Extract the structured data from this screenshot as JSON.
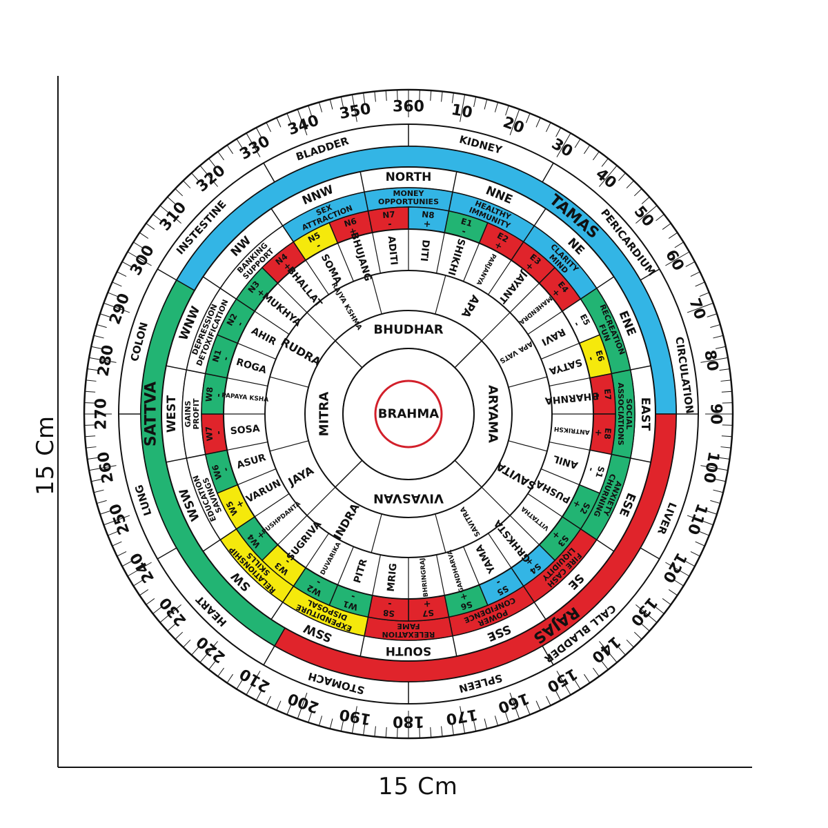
{
  "dimensions": {
    "width_label": "15 Cm",
    "height_label": "15 Cm"
  },
  "degree_labels": [
    "360",
    "10",
    "20",
    "30",
    "40",
    "50",
    "60",
    "70",
    "80",
    "90",
    "100",
    "110",
    "120",
    "130",
    "140",
    "150",
    "160",
    "170",
    "180",
    "190",
    "200",
    "210",
    "220",
    "230",
    "240",
    "250",
    "260",
    "270",
    "280",
    "290",
    "300",
    "310",
    "320",
    "330",
    "340",
    "350"
  ],
  "organ_labels": [
    {
      "text": "KIDNEY",
      "deg": 15
    },
    {
      "text": "PERICARDIUM",
      "deg": 52
    },
    {
      "text": "CIRCULATION",
      "deg": 82
    },
    {
      "text": "LIVER",
      "deg": 112
    },
    {
      "text": "CALL BLADDER",
      "deg": 142
    },
    {
      "text": "SPLEEN",
      "deg": 165
    },
    {
      "text": "STOMACH",
      "deg": 195
    },
    {
      "text": "HEART",
      "deg": 225
    },
    {
      "text": "LUNG",
      "deg": 252
    },
    {
      "text": "COLON",
      "deg": 285
    },
    {
      "text": "INSTESTINE",
      "deg": 312
    },
    {
      "text": "BLADDER",
      "deg": 342
    }
  ],
  "guna_labels": [
    {
      "text": "TAMAS",
      "deg": 40,
      "color": "#0a2f66"
    },
    {
      "text": "RAJAS",
      "deg": 145,
      "color": "#111111"
    },
    {
      "text": "SATTVA",
      "deg": 270,
      "color": "#111111"
    }
  ],
  "guna_arcs": [
    {
      "name": "tamas",
      "from": -60,
      "to": 90,
      "color": "#33b5e5"
    },
    {
      "name": "rajas",
      "from": 90,
      "to": 210,
      "color": "#e0242b"
    },
    {
      "name": "sattva",
      "from": 210,
      "to": 300,
      "color": "#22b473"
    }
  ],
  "directions": [
    {
      "text": "NORTH",
      "deg": 0
    },
    {
      "text": "NNE",
      "deg": 22.5
    },
    {
      "text": "NE",
      "deg": 45
    },
    {
      "text": "ENE",
      "deg": 67.5
    },
    {
      "text": "EAST",
      "deg": 90
    },
    {
      "text": "ESE",
      "deg": 112.5
    },
    {
      "text": "SE",
      "deg": 135
    },
    {
      "text": "SSE",
      "deg": 157.5
    },
    {
      "text": "SOUTH",
      "deg": 180
    },
    {
      "text": "SSW",
      "deg": 202.5
    },
    {
      "text": "SW",
      "deg": 225
    },
    {
      "text": "WSW",
      "deg": 247.5
    },
    {
      "text": "WEST",
      "deg": 270
    },
    {
      "text": "WNW",
      "deg": 292.5
    },
    {
      "text": "NW",
      "deg": 315
    },
    {
      "text": "NNW",
      "deg": 337.5
    }
  ],
  "zone_labels": [
    {
      "lines": [
        "MONEY",
        "OPPORTUNIES"
      ],
      "deg": 0,
      "color": "#33b5e5"
    },
    {
      "lines": [
        "HEALTHY",
        "IMMUNITY"
      ],
      "deg": 22.5,
      "color": "#33b5e5"
    },
    {
      "lines": [
        "CLARITY",
        "MIND"
      ],
      "deg": 45,
      "color": "#33b5e5"
    },
    {
      "lines": [
        "RECREATION",
        "FUN"
      ],
      "deg": 67.5,
      "color": "#22b473"
    },
    {
      "lines": [
        "SOCIAL",
        "ASSOCIATIONS"
      ],
      "deg": 90,
      "color": "#22b473"
    },
    {
      "lines": [
        "ANXIETY",
        "CHURNING"
      ],
      "deg": 112.5,
      "color": "#22b473"
    },
    {
      "lines": [
        "FIRE CASH",
        "LIQUIDITY"
      ],
      "deg": 135,
      "color": "#e0242b"
    },
    {
      "lines": [
        "POWER",
        "CONFIDENCE"
      ],
      "deg": 157.5,
      "color": "#e0242b"
    },
    {
      "lines": [
        "RELEXATION",
        "FAME"
      ],
      "deg": 180,
      "color": "#e0242b"
    },
    {
      "lines": [
        "EXPENDITURE",
        "DISPOSAL"
      ],
      "deg": 202.5,
      "color": "#f5e90c"
    },
    {
      "lines": [
        "RELATIONSHIP",
        "SKILLS"
      ],
      "deg": 225,
      "color": "#f5e90c"
    },
    {
      "lines": [
        "EDUCATION",
        "SAVINGS"
      ],
      "deg": 247.5,
      "color": "#ffffff"
    },
    {
      "lines": [
        "GAINS",
        "PROFIT"
      ],
      "deg": 270,
      "color": "#ffffff"
    },
    {
      "lines": [
        "DEPRESSION",
        "DETOXIFICATION"
      ],
      "deg": 292.5,
      "color": "#ffffff"
    },
    {
      "lines": [
        "BANKING",
        "SUPPORT"
      ],
      "deg": 315,
      "color": "#ffffff"
    },
    {
      "lines": [
        "SEX",
        "ATTRACTION"
      ],
      "deg": 337.5,
      "color": "#33b5e5"
    }
  ],
  "padas": [
    {
      "code": "N4",
      "sign": "+",
      "color": "#e0242b"
    },
    {
      "code": "N5",
      "sign": "-",
      "color": "#f5e90c"
    },
    {
      "code": "N6",
      "sign": "+",
      "color": "#e0242b"
    },
    {
      "code": "N7",
      "sign": "-",
      "color": "#e0242b"
    },
    {
      "code": "N8",
      "sign": "+",
      "color": "#33b5e5"
    },
    {
      "code": "E1",
      "sign": "-",
      "color": "#22b473"
    },
    {
      "code": "E2",
      "sign": "+",
      "color": "#e0242b"
    },
    {
      "code": "E3",
      "sign": "+",
      "color": "#e0242b"
    },
    {
      "code": "E4",
      "sign": "+",
      "color": "#e0242b"
    },
    {
      "code": "E5",
      "sign": "-",
      "color": "#ffffff"
    },
    {
      "code": "E6",
      "sign": "-",
      "color": "#f5e90c"
    },
    {
      "code": "E7",
      "sign": "-",
      "color": "#e0242b"
    },
    {
      "code": "E8",
      "sign": "+",
      "color": "#e0242b"
    },
    {
      "code": "S1",
      "sign": "-",
      "color": "#ffffff"
    },
    {
      "code": "S2",
      "sign": "+",
      "color": "#22b473"
    },
    {
      "code": "S3",
      "sign": "+",
      "color": "#22b473"
    },
    {
      "code": "S4",
      "sign": "+",
      "color": "#33b5e5"
    },
    {
      "code": "S5",
      "sign": "-",
      "color": "#33b5e5"
    },
    {
      "code": "S6",
      "sign": "+",
      "color": "#22b473"
    },
    {
      "code": "S7",
      "sign": "+",
      "color": "#e0242b"
    },
    {
      "code": "S8",
      "sign": "-",
      "color": "#e0242b"
    },
    {
      "code": "W1",
      "sign": "-",
      "color": "#22b473"
    },
    {
      "code": "W2",
      "sign": "-",
      "color": "#22b473"
    },
    {
      "code": "W3",
      "sign": "-",
      "color": "#f5e90c"
    },
    {
      "code": "W4",
      "sign": "+",
      "color": "#22b473"
    },
    {
      "code": "W5",
      "sign": "+",
      "color": "#f5e90c"
    },
    {
      "code": "W6",
      "sign": "-",
      "color": "#22b473"
    },
    {
      "code": "W7",
      "sign": "-",
      "color": "#e0242b"
    },
    {
      "code": "W8",
      "sign": "-",
      "color": "#22b473"
    },
    {
      "code": "N1",
      "sign": "-",
      "color": "#22b473"
    },
    {
      "code": "N2",
      "sign": "-",
      "color": "#22b473"
    },
    {
      "code": "N3",
      "sign": "+",
      "color": "#22b473"
    }
  ],
  "deities_outer": [
    "BHALLAT",
    "SOMA",
    "BHUJANG",
    "ADITI",
    "DITI",
    "SHIKHI",
    "PARJANYA",
    "JAYANT",
    "MAHENDRA",
    "RAVI",
    "SATYA",
    "BHARNHA",
    "ANTRIKSH",
    "ANIL",
    "PUSHA",
    "VITTATHA",
    "GRHKSTA",
    "YAMA",
    "GANDHARVA",
    "BHRINGRAJ",
    "MRIG",
    "PITR",
    "DUVARIKA",
    "SUGRIVA",
    "PUSHPDANTA",
    "VARUN",
    "ASUR",
    "SOSA",
    "PAPAYA KSHA",
    "ROGA",
    "AHIR",
    "MUKHYA"
  ],
  "deities_middle": [
    {
      "text": "APA",
      "deg": 30
    },
    {
      "text": "APA VATS",
      "deg": 60
    },
    {
      "text": "SAVITA",
      "deg": 120
    },
    {
      "text": "SAVITRA",
      "deg": 150
    },
    {
      "text": "INDRA",
      "deg": 210
    },
    {
      "text": "JAYA",
      "deg": 240
    },
    {
      "text": "RUDRA",
      "deg": 300
    },
    {
      "text": "RAJYA KSHMA",
      "deg": 330
    }
  ],
  "deities_inner": [
    {
      "text": "BHUDHAR",
      "deg": 0
    },
    {
      "text": "ARYAMA",
      "deg": 90
    },
    {
      "text": "VIVASVAN",
      "deg": 180
    },
    {
      "text": "MITRA",
      "deg": 270
    }
  ],
  "center": {
    "text": "BRAHMA",
    "color": "#d21f2a"
  }
}
